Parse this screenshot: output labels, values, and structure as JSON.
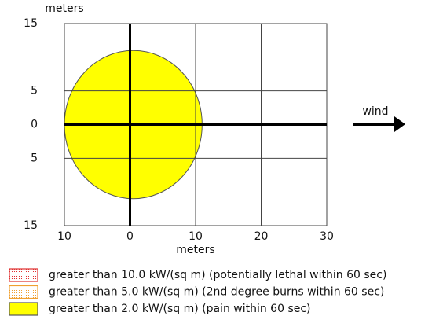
{
  "chart_data": {
    "type": "threat-zone",
    "y_label": "meters",
    "x_label": "meters",
    "annotation": "wind",
    "xlim": [
      -10,
      30
    ],
    "ylim": [
      -15,
      15
    ],
    "xticks": [
      {
        "value": -10,
        "label": "10"
      },
      0,
      10,
      20,
      30
    ],
    "yticks": [
      15,
      5,
      0,
      {
        "value": -5,
        "label": "5"
      },
      {
        "value": -15,
        "label": "15"
      }
    ],
    "grid": true,
    "series": [
      {
        "name": "greater than 10.0 kW/(sq m) (potentially lethal within 60 sec)",
        "color": "#e03030"
      },
      {
        "name": "greater than 5.0 kW/(sq m) (2nd degree burns within 60 sec)",
        "color": "#f0a030"
      },
      {
        "name": "greater than 2.0 kW/(sq m) (pain within 60 sec)",
        "color": "#ffff00",
        "x": [
          -10,
          11
        ],
        "y": [
          -11,
          11
        ]
      }
    ]
  }
}
